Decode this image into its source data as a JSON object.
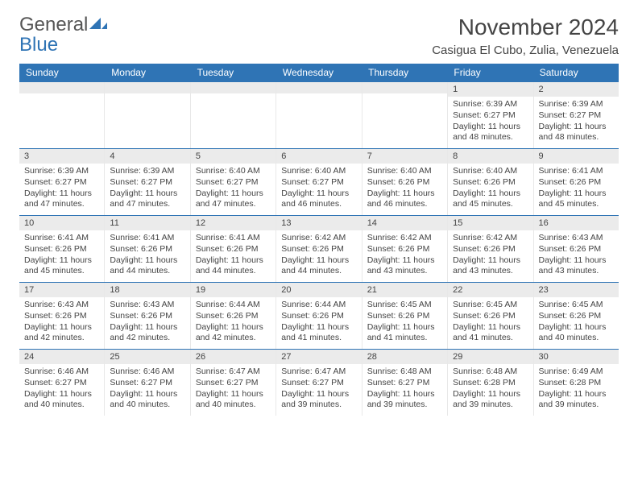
{
  "logo": {
    "line1": "General",
    "line2": "Blue"
  },
  "header": {
    "title": "November 2024",
    "subtitle": "Casigua El Cubo, Zulia, Venezuela"
  },
  "colors": {
    "header_bar": "#2f74b5",
    "daynum_bg": "#ebebeb",
    "rule": "#2f74b5",
    "text": "#444444"
  },
  "days_of_week": [
    "Sunday",
    "Monday",
    "Tuesday",
    "Wednesday",
    "Thursday",
    "Friday",
    "Saturday"
  ],
  "weeks": [
    [
      null,
      null,
      null,
      null,
      null,
      {
        "n": "1",
        "sunrise": "6:39 AM",
        "sunset": "6:27 PM",
        "daylight": "11 hours and 48 minutes."
      },
      {
        "n": "2",
        "sunrise": "6:39 AM",
        "sunset": "6:27 PM",
        "daylight": "11 hours and 48 minutes."
      }
    ],
    [
      {
        "n": "3",
        "sunrise": "6:39 AM",
        "sunset": "6:27 PM",
        "daylight": "11 hours and 47 minutes."
      },
      {
        "n": "4",
        "sunrise": "6:39 AM",
        "sunset": "6:27 PM",
        "daylight": "11 hours and 47 minutes."
      },
      {
        "n": "5",
        "sunrise": "6:40 AM",
        "sunset": "6:27 PM",
        "daylight": "11 hours and 47 minutes."
      },
      {
        "n": "6",
        "sunrise": "6:40 AM",
        "sunset": "6:27 PM",
        "daylight": "11 hours and 46 minutes."
      },
      {
        "n": "7",
        "sunrise": "6:40 AM",
        "sunset": "6:26 PM",
        "daylight": "11 hours and 46 minutes."
      },
      {
        "n": "8",
        "sunrise": "6:40 AM",
        "sunset": "6:26 PM",
        "daylight": "11 hours and 45 minutes."
      },
      {
        "n": "9",
        "sunrise": "6:41 AM",
        "sunset": "6:26 PM",
        "daylight": "11 hours and 45 minutes."
      }
    ],
    [
      {
        "n": "10",
        "sunrise": "6:41 AM",
        "sunset": "6:26 PM",
        "daylight": "11 hours and 45 minutes."
      },
      {
        "n": "11",
        "sunrise": "6:41 AM",
        "sunset": "6:26 PM",
        "daylight": "11 hours and 44 minutes."
      },
      {
        "n": "12",
        "sunrise": "6:41 AM",
        "sunset": "6:26 PM",
        "daylight": "11 hours and 44 minutes."
      },
      {
        "n": "13",
        "sunrise": "6:42 AM",
        "sunset": "6:26 PM",
        "daylight": "11 hours and 44 minutes."
      },
      {
        "n": "14",
        "sunrise": "6:42 AM",
        "sunset": "6:26 PM",
        "daylight": "11 hours and 43 minutes."
      },
      {
        "n": "15",
        "sunrise": "6:42 AM",
        "sunset": "6:26 PM",
        "daylight": "11 hours and 43 minutes."
      },
      {
        "n": "16",
        "sunrise": "6:43 AM",
        "sunset": "6:26 PM",
        "daylight": "11 hours and 43 minutes."
      }
    ],
    [
      {
        "n": "17",
        "sunrise": "6:43 AM",
        "sunset": "6:26 PM",
        "daylight": "11 hours and 42 minutes."
      },
      {
        "n": "18",
        "sunrise": "6:43 AM",
        "sunset": "6:26 PM",
        "daylight": "11 hours and 42 minutes."
      },
      {
        "n": "19",
        "sunrise": "6:44 AM",
        "sunset": "6:26 PM",
        "daylight": "11 hours and 42 minutes."
      },
      {
        "n": "20",
        "sunrise": "6:44 AM",
        "sunset": "6:26 PM",
        "daylight": "11 hours and 41 minutes."
      },
      {
        "n": "21",
        "sunrise": "6:45 AM",
        "sunset": "6:26 PM",
        "daylight": "11 hours and 41 minutes."
      },
      {
        "n": "22",
        "sunrise": "6:45 AM",
        "sunset": "6:26 PM",
        "daylight": "11 hours and 41 minutes."
      },
      {
        "n": "23",
        "sunrise": "6:45 AM",
        "sunset": "6:26 PM",
        "daylight": "11 hours and 40 minutes."
      }
    ],
    [
      {
        "n": "24",
        "sunrise": "6:46 AM",
        "sunset": "6:27 PM",
        "daylight": "11 hours and 40 minutes."
      },
      {
        "n": "25",
        "sunrise": "6:46 AM",
        "sunset": "6:27 PM",
        "daylight": "11 hours and 40 minutes."
      },
      {
        "n": "26",
        "sunrise": "6:47 AM",
        "sunset": "6:27 PM",
        "daylight": "11 hours and 40 minutes."
      },
      {
        "n": "27",
        "sunrise": "6:47 AM",
        "sunset": "6:27 PM",
        "daylight": "11 hours and 39 minutes."
      },
      {
        "n": "28",
        "sunrise": "6:48 AM",
        "sunset": "6:27 PM",
        "daylight": "11 hours and 39 minutes."
      },
      {
        "n": "29",
        "sunrise": "6:48 AM",
        "sunset": "6:28 PM",
        "daylight": "11 hours and 39 minutes."
      },
      {
        "n": "30",
        "sunrise": "6:49 AM",
        "sunset": "6:28 PM",
        "daylight": "11 hours and 39 minutes."
      }
    ]
  ],
  "labels": {
    "sunrise": "Sunrise: ",
    "sunset": "Sunset: ",
    "daylight": "Daylight: "
  }
}
